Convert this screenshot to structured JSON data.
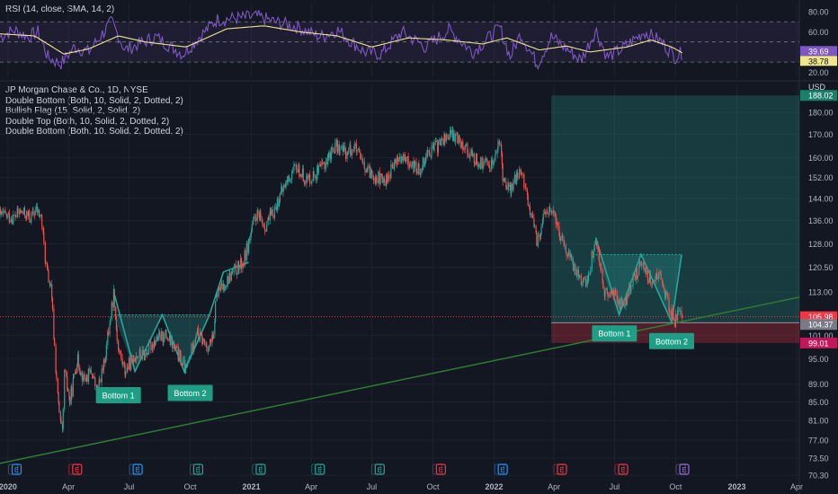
{
  "rsi": {
    "title": "RSI (14, close, SMA, 14, 2)",
    "ticks": [
      "80.00",
      "60.00",
      "40.00",
      "20.00"
    ],
    "tick_values": [
      80,
      60,
      40,
      20
    ],
    "badges": [
      {
        "label": "39.69",
        "value": 39.69,
        "bg": "#7e57c2",
        "fg": "#ffffff"
      },
      {
        "label": "38.78",
        "value": 38.78,
        "bg": "#f0e68c",
        "fg": "#131722"
      }
    ]
  },
  "legend": [
    "JP Morgan Chase & Co., 1D, NYSE",
    "Double Bottom (Both, 10, Solid, 2, Dotted, 2)",
    "Bullish Flag (15, Solid, 2, Solid, 2)",
    "Double Top (Both, 10, Solid, 2, Dotted, 2)",
    "Double Bottom (Both, 10, Solid, 2, Dotted, 2)"
  ],
  "currency": "USD",
  "price_badges": [
    {
      "label": "188.02",
      "value": 188.02,
      "bg": "#1b7f6a",
      "fg": "#ffffff"
    },
    {
      "label": "105.98",
      "value": 105.98,
      "bg": "#f23645",
      "fg": "#ffffff"
    },
    {
      "label": "104.37",
      "value": 104.37,
      "bg": "#787b86",
      "fg": "#ffffff"
    },
    {
      "label": "99.01",
      "value": 99.01,
      "bg": "#c2185b",
      "fg": "#ffffff"
    }
  ],
  "pattern_labels": [
    {
      "text": "Bottom 1",
      "date": "2020-06-15",
      "price": 86.5
    },
    {
      "text": "Bottom 2",
      "date": "2020-10-01",
      "price": 87.0
    },
    {
      "text": "Bottom 1",
      "date": "2022-07-01",
      "price": 101.5
    },
    {
      "text": "Bottom 2",
      "date": "2022-09-25",
      "price": 99.5
    }
  ],
  "event_markers": [
    {
      "date": "2020-01-14",
      "kind": "E",
      "color": "#2196f3"
    },
    {
      "date": "2020-04-14",
      "kind": "E",
      "color": "#f23645"
    },
    {
      "date": "2020-07-14",
      "kind": "E",
      "color": "#2196f3"
    },
    {
      "date": "2020-10-13",
      "kind": "E",
      "color": "#26a69a"
    },
    {
      "date": "2021-01-15",
      "kind": "E",
      "color": "#26a69a"
    },
    {
      "date": "2021-04-14",
      "kind": "E",
      "color": "#26a69a"
    },
    {
      "date": "2021-07-13",
      "kind": "E",
      "color": "#26a69a"
    },
    {
      "date": "2021-10-13",
      "kind": "E",
      "color": "#f23645"
    },
    {
      "date": "2022-01-14",
      "kind": "E",
      "color": "#2196f3"
    },
    {
      "date": "2022-04-13",
      "kind": "E",
      "color": "#f23645"
    },
    {
      "date": "2022-07-14",
      "kind": "E",
      "color": "#f23645"
    },
    {
      "date": "2022-10-14",
      "kind": "E",
      "color": "#9c6ade"
    }
  ],
  "chart_data": {
    "type": "candlestick",
    "title": "JP Morgan Chase & Co., 1D, NYSE",
    "x_ticks": [
      {
        "label": "2020",
        "date": "2020-01-01",
        "bold": true
      },
      {
        "label": "Apr",
        "date": "2020-04-01"
      },
      {
        "label": "Jul",
        "date": "2020-07-01"
      },
      {
        "label": "Oct",
        "date": "2020-10-01"
      },
      {
        "label": "2021",
        "date": "2021-01-01",
        "bold": true
      },
      {
        "label": "Apr",
        "date": "2021-04-01"
      },
      {
        "label": "Jul",
        "date": "2021-07-01"
      },
      {
        "label": "Oct",
        "date": "2021-10-01"
      },
      {
        "label": "2022",
        "date": "2022-01-01",
        "bold": true
      },
      {
        "label": "Apr",
        "date": "2022-04-01"
      },
      {
        "label": "Jul",
        "date": "2022-07-01"
      },
      {
        "label": "Oct",
        "date": "2022-10-01"
      },
      {
        "label": "2023",
        "date": "2023-01-01",
        "bold": true
      },
      {
        "label": "Apr",
        "date": "2023-04-01"
      }
    ],
    "x_range": [
      "2019-12-20",
      "2023-04-05"
    ],
    "y_scale": "log",
    "y_ticks": [
      {
        "label": "180.00",
        "value": 180
      },
      {
        "label": "170.00",
        "value": 170
      },
      {
        "label": "160.00",
        "value": 160
      },
      {
        "label": "152.00",
        "value": 152
      },
      {
        "label": "144.00",
        "value": 144
      },
      {
        "label": "136.00",
        "value": 136
      },
      {
        "label": "128.00",
        "value": 128
      },
      {
        "label": "120.50",
        "value": 120.5
      },
      {
        "label": "113.00",
        "value": 113
      },
      {
        "label": "101.00",
        "value": 101
      },
      {
        "label": "95.00",
        "value": 95
      },
      {
        "label": "89.00",
        "value": 89
      },
      {
        "label": "85.00",
        "value": 85
      },
      {
        "label": "81.00",
        "value": 81
      },
      {
        "label": "77.00",
        "value": 77
      },
      {
        "label": "73.50",
        "value": 73.5
      },
      {
        "label": "70.30",
        "value": 70.3
      }
    ],
    "y_range": [
      69.5,
      189
    ],
    "up_color": "#26a69a",
    "down_color": "#ef5350",
    "close_path": [
      [
        "2019-12-20",
        138
      ],
      [
        "2020-01-08",
        137
      ],
      [
        "2020-01-20",
        139
      ],
      [
        "2020-02-05",
        137
      ],
      [
        "2020-02-12",
        140
      ],
      [
        "2020-02-20",
        137
      ],
      [
        "2020-02-27",
        121
      ],
      [
        "2020-03-06",
        113
      ],
      [
        "2020-03-12",
        95
      ],
      [
        "2020-03-16",
        86
      ],
      [
        "2020-03-19",
        81
      ],
      [
        "2020-03-23",
        78
      ],
      [
        "2020-03-26",
        92
      ],
      [
        "2020-04-03",
        85
      ],
      [
        "2020-04-14",
        95
      ],
      [
        "2020-04-24",
        90
      ],
      [
        "2020-05-06",
        92
      ],
      [
        "2020-05-14",
        87
      ],
      [
        "2020-05-25",
        94
      ],
      [
        "2020-06-08",
        113
      ],
      [
        "2020-06-14",
        98
      ],
      [
        "2020-06-25",
        92
      ],
      [
        "2020-07-10",
        96
      ],
      [
        "2020-07-24",
        96
      ],
      [
        "2020-08-10",
        100
      ],
      [
        "2020-08-25",
        101
      ],
      [
        "2020-09-10",
        97
      ],
      [
        "2020-09-25",
        92
      ],
      [
        "2020-10-10",
        102
      ],
      [
        "2020-10-26",
        98
      ],
      [
        "2020-11-05",
        100
      ],
      [
        "2020-11-09",
        112
      ],
      [
        "2020-11-20",
        115
      ],
      [
        "2020-12-05",
        119
      ],
      [
        "2020-12-20",
        122
      ],
      [
        "2021-01-08",
        138
      ],
      [
        "2021-01-22",
        134
      ],
      [
        "2021-02-05",
        140
      ],
      [
        "2021-02-22",
        150
      ],
      [
        "2021-03-10",
        156
      ],
      [
        "2021-03-25",
        151
      ],
      [
        "2021-04-15",
        155
      ],
      [
        "2021-05-07",
        165
      ],
      [
        "2021-05-25",
        162
      ],
      [
        "2021-06-05",
        165
      ],
      [
        "2021-06-20",
        155
      ],
      [
        "2021-07-05",
        153
      ],
      [
        "2021-07-20",
        150
      ],
      [
        "2021-08-10",
        160
      ],
      [
        "2021-08-25",
        158
      ],
      [
        "2021-09-10",
        155
      ],
      [
        "2021-09-25",
        163
      ],
      [
        "2021-10-08",
        165
      ],
      [
        "2021-10-25",
        170
      ],
      [
        "2021-11-10",
        168
      ],
      [
        "2021-11-30",
        160
      ],
      [
        "2021-12-15",
        157
      ],
      [
        "2021-12-30",
        158
      ],
      [
        "2022-01-10",
        167
      ],
      [
        "2022-01-14",
        153
      ],
      [
        "2022-01-25",
        147
      ],
      [
        "2022-02-10",
        155
      ],
      [
        "2022-02-24",
        140
      ],
      [
        "2022-03-07",
        128
      ],
      [
        "2022-03-20",
        140
      ],
      [
        "2022-04-01",
        138
      ],
      [
        "2022-04-14",
        128
      ],
      [
        "2022-04-28",
        122
      ],
      [
        "2022-05-12",
        117
      ],
      [
        "2022-05-20",
        115
      ],
      [
        "2022-06-03",
        130
      ],
      [
        "2022-06-17",
        112
      ],
      [
        "2022-06-30",
        113
      ],
      [
        "2022-07-14",
        108
      ],
      [
        "2022-07-28",
        116
      ],
      [
        "2022-08-12",
        122
      ],
      [
        "2022-08-25",
        116
      ],
      [
        "2022-09-08",
        118
      ],
      [
        "2022-09-20",
        109
      ],
      [
        "2022-09-30",
        105
      ],
      [
        "2022-10-07",
        107
      ],
      [
        "2022-10-12",
        106
      ]
    ],
    "trendline": {
      "from": [
        "2019-12-20",
        72.5
      ],
      "to": [
        "2023-04-05",
        111.5
      ],
      "color": "#2e7d32"
    },
    "dotted_line": {
      "value": 105.98,
      "color": "#f23645"
    },
    "projection": {
      "start": "2022-03-28",
      "end": "2023-04-05",
      "target": 188.02,
      "entry": 104.37,
      "stop": 99.01,
      "profit_color": "rgba(38,166,154,0.25)",
      "loss_color": "rgba(242,54,69,0.28)"
    },
    "patterns": [
      {
        "name": "Double Bottom (Both, 10, Solid, 2, Dotted, 2)",
        "neckline": 106.5,
        "zigzag": [
          [
            "2020-06-08",
            113
          ],
          [
            "2020-07-10",
            92
          ],
          [
            "2020-08-20",
            106.5
          ],
          [
            "2020-09-22",
            92
          ],
          [
            "2020-10-30",
            106.5
          ],
          [
            "2020-11-20",
            119
          ],
          [
            "2020-12-28",
            122
          ]
        ]
      },
      {
        "name": "Double Bottom (Both, 10, Solid, 2, Dotted, 2)",
        "neckline": 124.5,
        "zigzag": [
          [
            "2022-06-03",
            130
          ],
          [
            "2022-07-08",
            106.5
          ],
          [
            "2022-08-10",
            124.5
          ],
          [
            "2022-09-25",
            104.5
          ],
          [
            "2022-10-10",
            124.5
          ]
        ]
      }
    ]
  },
  "rsi_data": {
    "type": "line",
    "rsi": [
      [
        "2019-12-20",
        55
      ],
      [
        "2020-01-10",
        62
      ],
      [
        "2020-02-01",
        55
      ],
      [
        "2020-02-15",
        60
      ],
      [
        "2020-03-01",
        35
      ],
      [
        "2020-03-20",
        28
      ],
      [
        "2020-04-10",
        45
      ],
      [
        "2020-05-01",
        40
      ],
      [
        "2020-06-05",
        70
      ],
      [
        "2020-06-25",
        42
      ],
      [
        "2020-08-10",
        55
      ],
      [
        "2020-09-20",
        38
      ],
      [
        "2020-10-15",
        55
      ],
      [
        "2020-11-10",
        72
      ],
      [
        "2021-01-10",
        75
      ],
      [
        "2021-02-15",
        68
      ],
      [
        "2021-03-10",
        65
      ],
      [
        "2021-04-15",
        55
      ],
      [
        "2021-05-10",
        62
      ],
      [
        "2021-06-20",
        40
      ],
      [
        "2021-07-15",
        38
      ],
      [
        "2021-08-15",
        60
      ],
      [
        "2021-09-20",
        45
      ],
      [
        "2021-10-25",
        62
      ],
      [
        "2021-11-30",
        40
      ],
      [
        "2022-01-10",
        64
      ],
      [
        "2022-01-25",
        35
      ],
      [
        "2022-02-10",
        58
      ],
      [
        "2022-03-07",
        28
      ],
      [
        "2022-03-28",
        55
      ],
      [
        "2022-05-12",
        32
      ],
      [
        "2022-06-03",
        62
      ],
      [
        "2022-06-20",
        35
      ],
      [
        "2022-07-10",
        42
      ],
      [
        "2022-08-15",
        60
      ],
      [
        "2022-09-10",
        50
      ],
      [
        "2022-09-30",
        35
      ],
      [
        "2022-10-12",
        39.69
      ]
    ],
    "sma": [
      [
        "2019-12-20",
        58
      ],
      [
        "2020-02-10",
        56
      ],
      [
        "2020-03-25",
        38
      ],
      [
        "2020-05-01",
        43
      ],
      [
        "2020-06-15",
        56
      ],
      [
        "2020-07-25",
        50
      ],
      [
        "2020-09-25",
        45
      ],
      [
        "2020-11-25",
        63
      ],
      [
        "2021-01-20",
        66
      ],
      [
        "2021-03-15",
        60
      ],
      [
        "2021-05-10",
        56
      ],
      [
        "2021-07-01",
        45
      ],
      [
        "2021-08-25",
        54
      ],
      [
        "2021-10-20",
        52
      ],
      [
        "2021-12-15",
        48
      ],
      [
        "2022-01-20",
        54
      ],
      [
        "2022-03-10",
        42
      ],
      [
        "2022-04-20",
        46
      ],
      [
        "2022-05-25",
        40
      ],
      [
        "2022-07-20",
        45
      ],
      [
        "2022-08-25",
        52
      ],
      [
        "2022-09-25",
        45
      ],
      [
        "2022-10-12",
        38.78
      ]
    ],
    "range": [
      15,
      88
    ],
    "band": [
      30,
      70
    ]
  }
}
